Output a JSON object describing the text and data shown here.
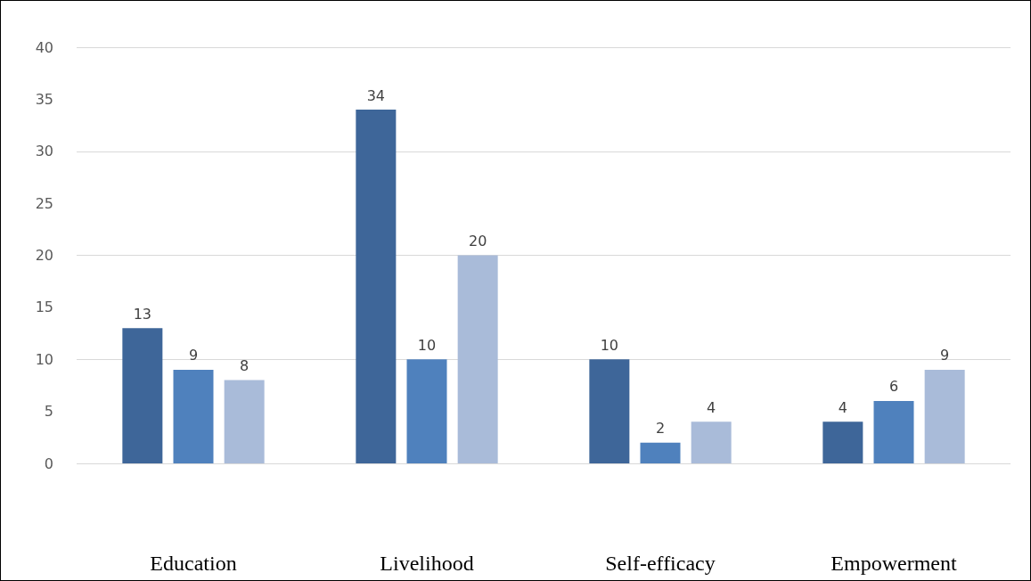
{
  "chart_data": {
    "type": "bar",
    "categories": [
      "Education",
      "Livelihood",
      "Self-efficacy",
      "Empowerment"
    ],
    "series": [
      {
        "color": "#3e6699",
        "values": [
          13,
          34,
          10,
          4
        ]
      },
      {
        "color": "#4f81bd",
        "values": [
          9,
          10,
          2,
          6
        ]
      },
      {
        "color": "#a9bbd9",
        "values": [
          8,
          20,
          4,
          9
        ]
      }
    ],
    "ylim": [
      0,
      40
    ],
    "yticks": [
      0,
      5,
      10,
      15,
      20,
      25,
      30,
      35,
      40
    ],
    "grid": "y",
    "data_labels": true
  }
}
